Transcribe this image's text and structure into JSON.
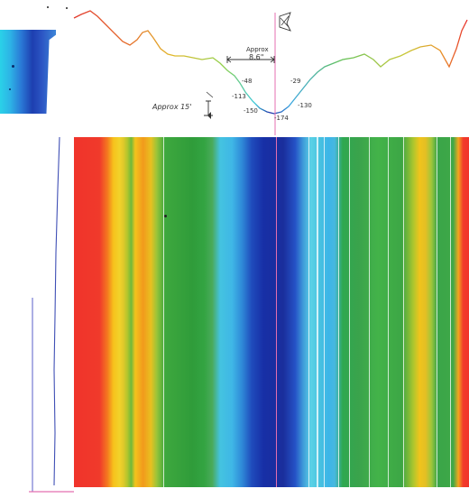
{
  "annotations": {
    "approx_top": "Approx",
    "approx_value": "8.6\"",
    "approx_left": "Approx 15'",
    "labels": [
      "-48",
      "-29",
      "-113",
      "-130",
      "-150",
      "-174"
    ]
  },
  "icons": {
    "marker": "flag-icon"
  },
  "colors": {
    "red": "#f0332b",
    "orange": "#f29a1c",
    "yellow": "#f3c31c",
    "green": "#3aa549",
    "cyan": "#44c3e0",
    "blue": "#1a2e9c",
    "center_line": "#e46fb0",
    "axis_blue": "#3f4fb5"
  }
}
